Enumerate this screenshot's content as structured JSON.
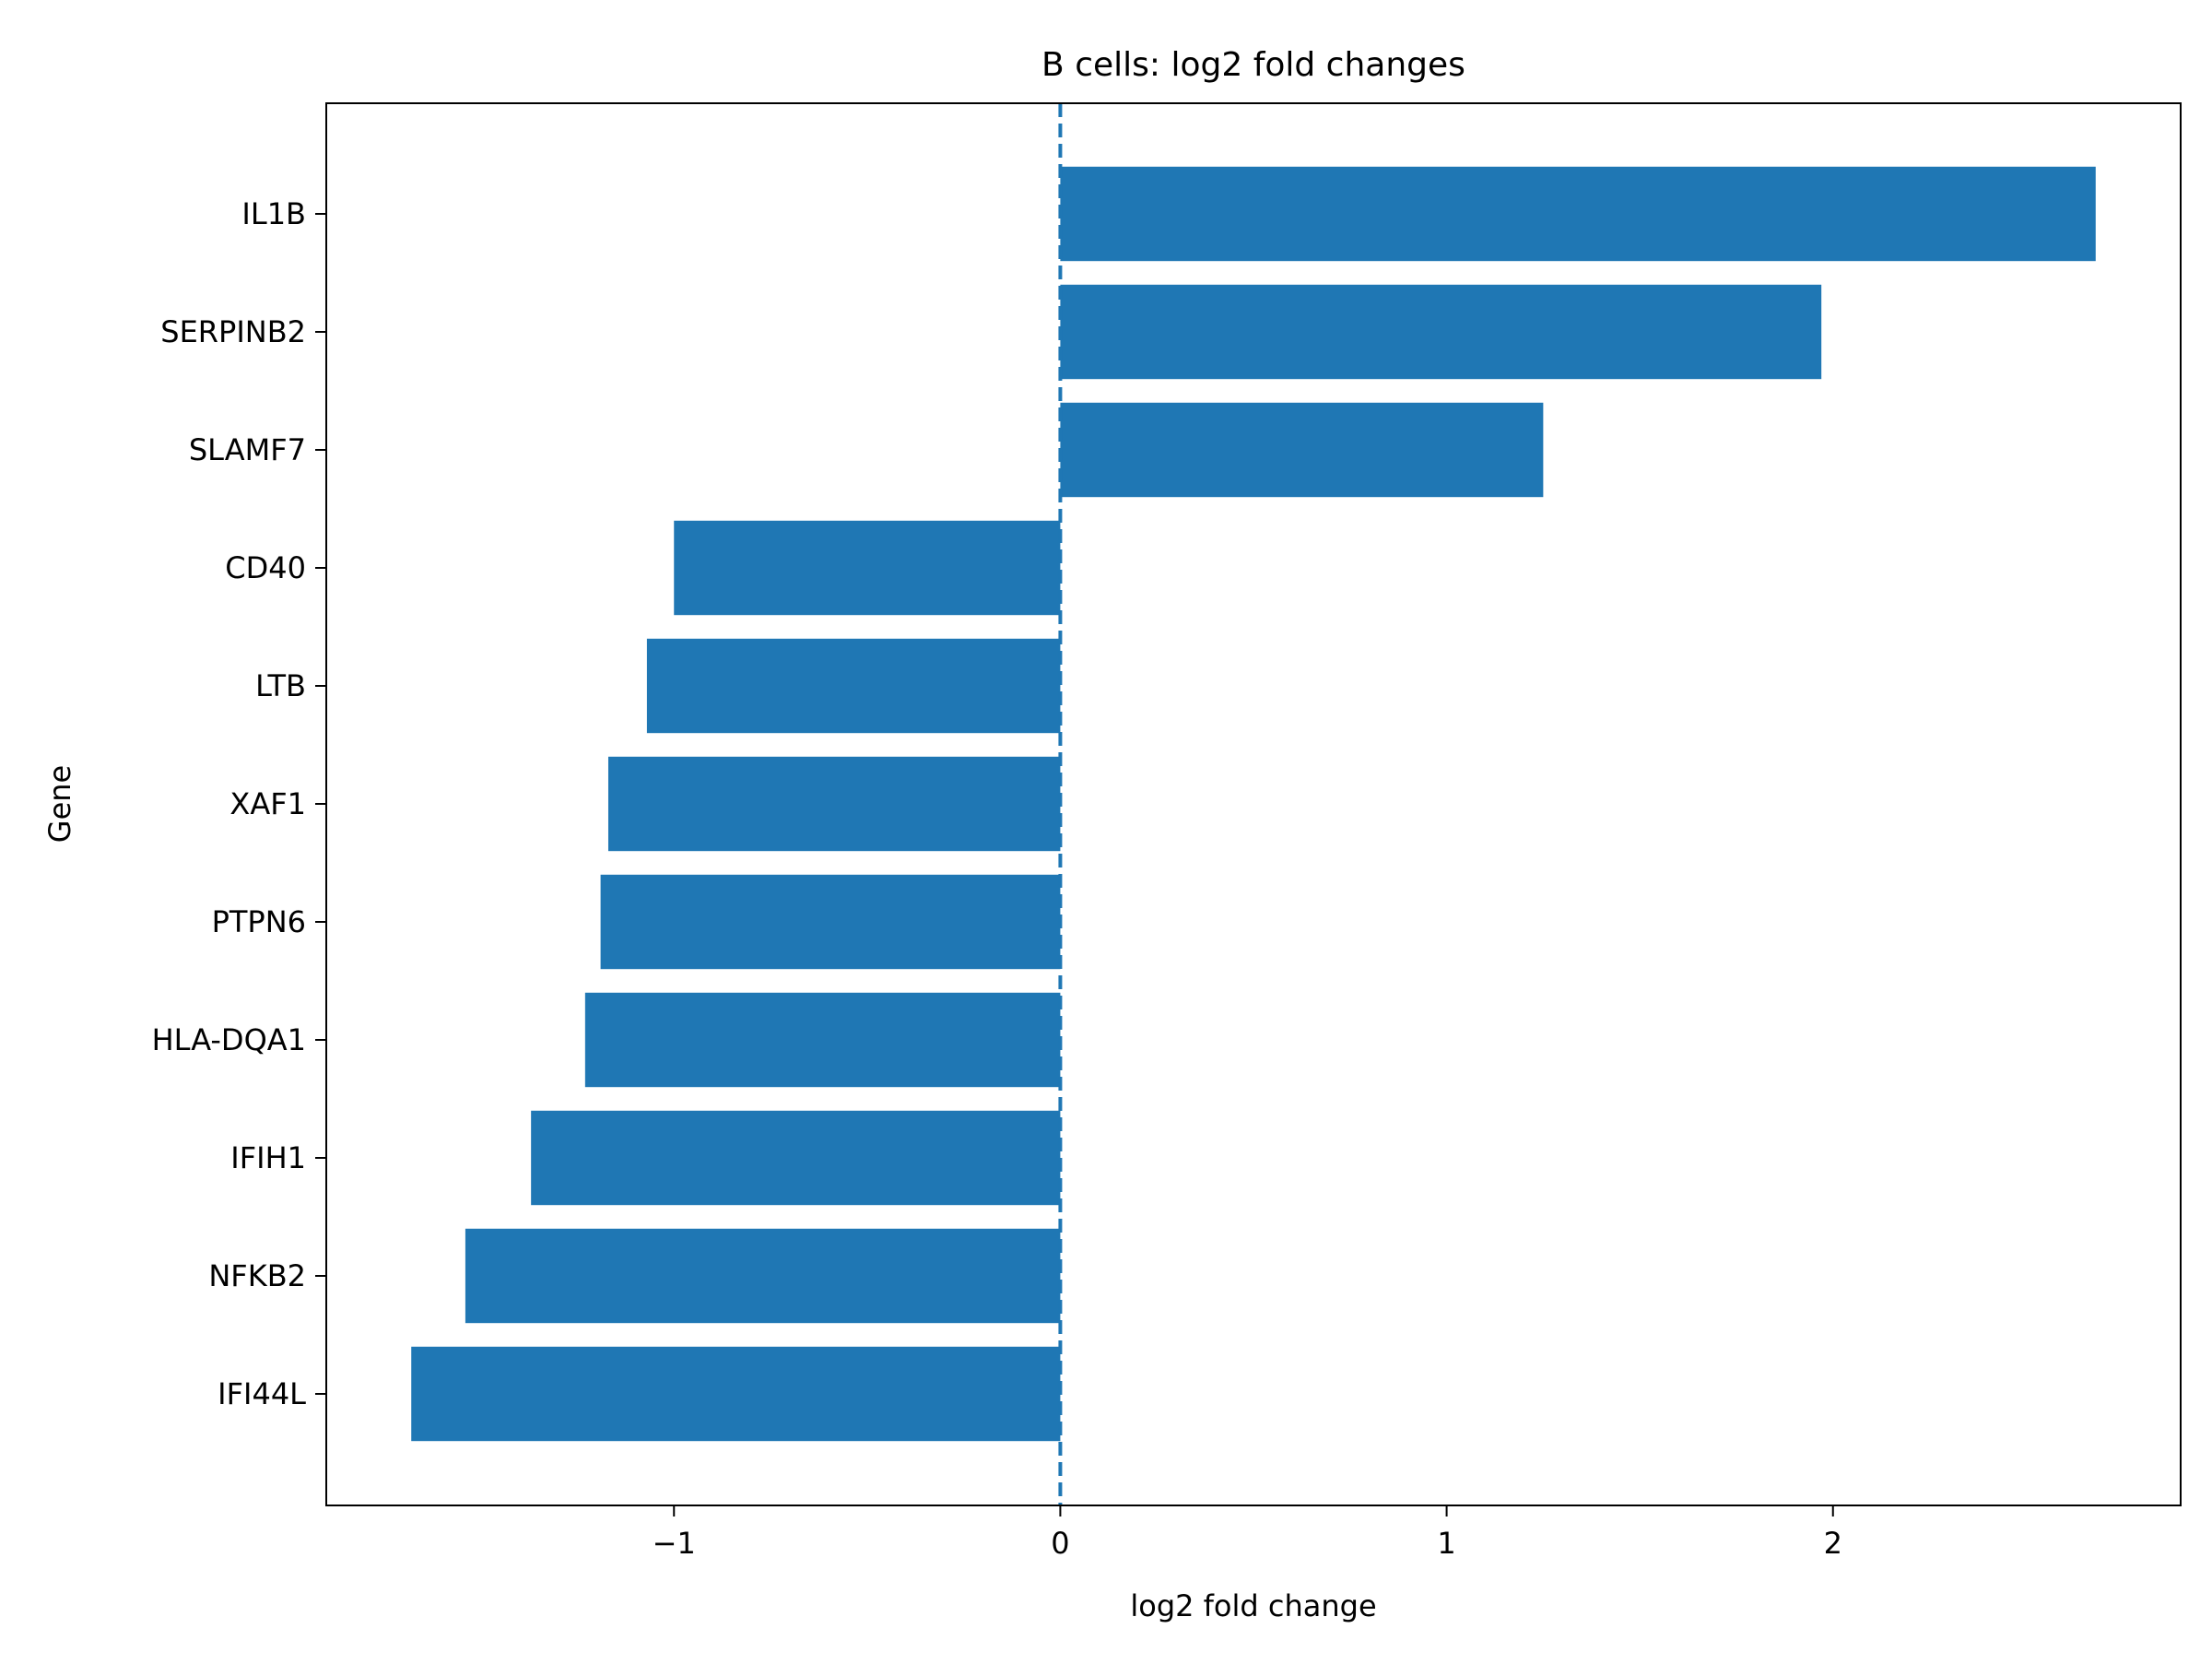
{
  "chart_data": {
    "type": "bar",
    "orientation": "horizontal",
    "title": "B cells: log2 fold changes",
    "xlabel": "log2 fold change",
    "ylabel": "Gene",
    "categories": [
      "IL1B",
      "SERPINB2",
      "SLAMF7",
      "CD40",
      "LTB",
      "XAF1",
      "PTPN6",
      "HLA-DQA1",
      "IFIH1",
      "NFKB2",
      "IFI44L"
    ],
    "values": [
      2.68,
      1.97,
      1.25,
      -1.0,
      -1.07,
      -1.17,
      -1.19,
      -1.23,
      -1.37,
      -1.54,
      -1.68
    ],
    "xlim": [
      -1.9,
      2.9
    ],
    "xticks": [
      -1,
      0,
      1,
      2
    ],
    "xtick_labels": [
      "−1",
      "0",
      "1",
      "2"
    ],
    "reference_line": {
      "x": 0,
      "style": "dashed"
    },
    "grid": false,
    "legend": "none",
    "colors": {
      "bar": "#1f77b4",
      "reference_line": "#1f77b4",
      "axes": "#000000"
    }
  }
}
